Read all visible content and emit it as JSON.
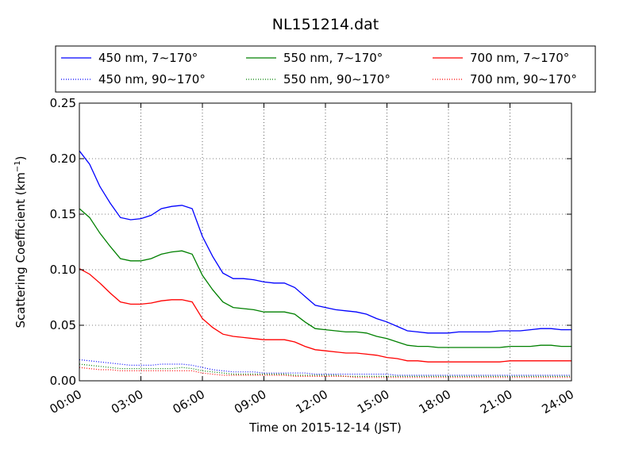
{
  "chart_data": {
    "type": "line",
    "title": "NL151214.dat",
    "xlabel": "Time on 2015-12-14 (JST)",
    "ylabel": "Scattering Coefficient (km",
    "ylabel_sup": "−1",
    "ylabel_close": ")",
    "xlim": [
      "2015-12-14 00:00",
      "2015-12-15 00:00"
    ],
    "ylim": [
      0,
      0.25
    ],
    "grid": true,
    "legend_position": "top",
    "x_ticks": [
      "00:00",
      "03:00",
      "06:00",
      "09:00",
      "12:00",
      "15:00",
      "18:00",
      "21:00",
      "24:00"
    ],
    "y_ticks": [
      "0.00",
      "0.05",
      "0.10",
      "0.15",
      "0.20",
      "0.25"
    ],
    "x": [
      "00:00",
      "00:30",
      "01:00",
      "01:30",
      "02:00",
      "02:30",
      "03:00",
      "03:30",
      "04:00",
      "04:30",
      "05:00",
      "05:30",
      "06:00",
      "06:30",
      "07:00",
      "07:30",
      "08:00",
      "08:30",
      "09:00",
      "09:30",
      "10:00",
      "10:30",
      "11:00",
      "11:30",
      "12:00",
      "12:30",
      "13:00",
      "13:30",
      "14:00",
      "14:30",
      "15:00",
      "15:30",
      "16:00",
      "16:30",
      "17:00",
      "17:30",
      "18:00",
      "18:30",
      "19:00",
      "19:30",
      "20:00",
      "20:30",
      "21:00",
      "21:30",
      "22:00",
      "22:30",
      "23:00",
      "23:30",
      "24:00"
    ],
    "series": [
      {
        "name": "450 nm, 7∼170°",
        "color": "#0000ff",
        "style": "solid",
        "values": [
          0.207,
          0.195,
          0.175,
          0.16,
          0.147,
          0.145,
          0.146,
          0.149,
          0.155,
          0.157,
          0.158,
          0.155,
          0.13,
          0.112,
          0.097,
          0.092,
          0.092,
          0.091,
          0.089,
          0.088,
          0.088,
          0.084,
          0.076,
          0.068,
          0.066,
          0.064,
          0.063,
          0.062,
          0.06,
          0.056,
          0.053,
          0.049,
          0.045,
          0.044,
          0.043,
          0.043,
          0.043,
          0.044,
          0.044,
          0.044,
          0.044,
          0.045,
          0.045,
          0.045,
          0.046,
          0.047,
          0.047,
          0.046,
          0.046
        ]
      },
      {
        "name": "450 nm, 90∼170°",
        "color": "#0000ff",
        "style": "dotted",
        "values": [
          0.019,
          0.018,
          0.017,
          0.016,
          0.015,
          0.014,
          0.014,
          0.014,
          0.015,
          0.015,
          0.015,
          0.014,
          0.012,
          0.01,
          0.009,
          0.008,
          0.008,
          0.008,
          0.007,
          0.007,
          0.007,
          0.007,
          0.007,
          0.006,
          0.006,
          0.006,
          0.006,
          0.006,
          0.006,
          0.006,
          0.006,
          0.005,
          0.005,
          0.005,
          0.005,
          0.005,
          0.005,
          0.005,
          0.005,
          0.005,
          0.005,
          0.005,
          0.005,
          0.005,
          0.005,
          0.005,
          0.005,
          0.005,
          0.005
        ]
      },
      {
        "name": "550 nm, 7∼170°",
        "color": "#008000",
        "style": "solid",
        "values": [
          0.155,
          0.147,
          0.133,
          0.121,
          0.11,
          0.108,
          0.108,
          0.11,
          0.114,
          0.116,
          0.117,
          0.114,
          0.095,
          0.082,
          0.071,
          0.066,
          0.065,
          0.064,
          0.062,
          0.062,
          0.062,
          0.06,
          0.053,
          0.047,
          0.046,
          0.045,
          0.044,
          0.044,
          0.043,
          0.04,
          0.038,
          0.035,
          0.032,
          0.031,
          0.031,
          0.03,
          0.03,
          0.03,
          0.03,
          0.03,
          0.03,
          0.03,
          0.031,
          0.031,
          0.031,
          0.032,
          0.032,
          0.031,
          0.031
        ]
      },
      {
        "name": "550 nm, 90∼170°",
        "color": "#008000",
        "style": "dotted",
        "values": [
          0.015,
          0.014,
          0.013,
          0.012,
          0.011,
          0.011,
          0.011,
          0.011,
          0.011,
          0.011,
          0.012,
          0.011,
          0.009,
          0.008,
          0.007,
          0.006,
          0.006,
          0.006,
          0.006,
          0.006,
          0.006,
          0.005,
          0.005,
          0.005,
          0.005,
          0.005,
          0.004,
          0.004,
          0.004,
          0.004,
          0.004,
          0.004,
          0.004,
          0.004,
          0.004,
          0.004,
          0.004,
          0.004,
          0.004,
          0.004,
          0.004,
          0.004,
          0.004,
          0.004,
          0.004,
          0.004,
          0.004,
          0.004,
          0.004
        ]
      },
      {
        "name": "700 nm, 7∼170°",
        "color": "#ff0000",
        "style": "solid",
        "values": [
          0.101,
          0.096,
          0.088,
          0.079,
          0.071,
          0.069,
          0.069,
          0.07,
          0.072,
          0.073,
          0.073,
          0.071,
          0.056,
          0.048,
          0.042,
          0.04,
          0.039,
          0.038,
          0.037,
          0.037,
          0.037,
          0.035,
          0.031,
          0.028,
          0.027,
          0.026,
          0.025,
          0.025,
          0.024,
          0.023,
          0.021,
          0.02,
          0.018,
          0.018,
          0.017,
          0.017,
          0.017,
          0.017,
          0.017,
          0.017,
          0.017,
          0.017,
          0.018,
          0.018,
          0.018,
          0.018,
          0.018,
          0.018,
          0.018
        ]
      },
      {
        "name": "700 nm, 90∼170°",
        "color": "#ff0000",
        "style": "dotted",
        "values": [
          0.012,
          0.011,
          0.01,
          0.01,
          0.009,
          0.009,
          0.009,
          0.009,
          0.009,
          0.009,
          0.009,
          0.009,
          0.007,
          0.006,
          0.005,
          0.005,
          0.005,
          0.005,
          0.005,
          0.005,
          0.005,
          0.004,
          0.004,
          0.004,
          0.004,
          0.004,
          0.004,
          0.003,
          0.003,
          0.003,
          0.003,
          0.003,
          0.003,
          0.003,
          0.003,
          0.003,
          0.003,
          0.003,
          0.003,
          0.003,
          0.003,
          0.003,
          0.003,
          0.003,
          0.003,
          0.003,
          0.003,
          0.003,
          0.003
        ]
      }
    ]
  }
}
